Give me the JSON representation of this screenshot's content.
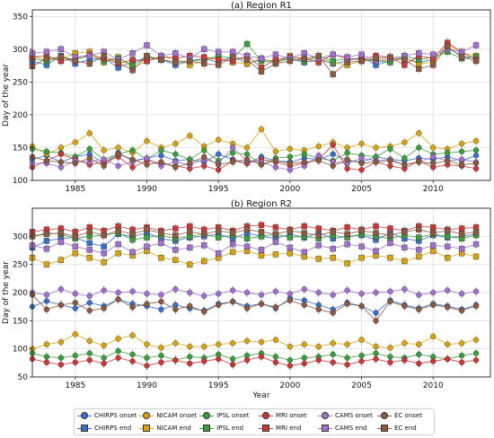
{
  "chart_data": [
    {
      "type": "line",
      "title": "(a) Region R1",
      "xlabel": "",
      "ylabel": "Day of the year",
      "xlim": [
        1982,
        2014
      ],
      "ylim": [
        100,
        360
      ],
      "yticks": [
        100,
        150,
        200,
        250,
        300,
        350
      ],
      "xticks": [
        1985,
        1990,
        1995,
        2000,
        2005,
        2010
      ],
      "grid": true,
      "x": [
        1982,
        1983,
        1984,
        1985,
        1986,
        1987,
        1988,
        1989,
        1990,
        1991,
        1992,
        1993,
        1994,
        1995,
        1996,
        1997,
        1998,
        1999,
        2000,
        2001,
        2002,
        2003,
        2004,
        2005,
        2006,
        2007,
        2008,
        2009,
        2010,
        2011,
        2012,
        2013
      ],
      "series": [
        {
          "name": "CHIRPS onset",
          "values": [
            132,
            138,
            128,
            136,
            140,
            126,
            142,
            130,
            134,
            138,
            130,
            132,
            128,
            140,
            132,
            126,
            136,
            130,
            128,
            134,
            132,
            140,
            130,
            128,
            136,
            132,
            130,
            134,
            132,
            136,
            130,
            138
          ]
        },
        {
          "name": "CHIRPS end",
          "values": [
            282,
            276,
            290,
            278,
            284,
            286,
            272,
            280,
            288,
            284,
            276,
            282,
            286,
            280,
            290,
            278,
            284,
            282,
            286,
            280,
            284,
            278,
            282,
            288,
            276,
            282,
            286,
            280,
            284,
            302,
            290,
            286
          ]
        },
        {
          "name": "NICAM onset",
          "values": [
            152,
            140,
            150,
            158,
            172,
            146,
            150,
            142,
            160,
            150,
            156,
            168,
            152,
            162,
            156,
            150,
            178,
            144,
            148,
            146,
            152,
            158,
            150,
            156,
            150,
            152,
            158,
            172,
            150,
            148,
            156,
            160
          ]
        },
        {
          "name": "NICAM end",
          "values": [
            290,
            284,
            286,
            294,
            296,
            280,
            288,
            272,
            282,
            290,
            286,
            276,
            282,
            288,
            280,
            278,
            286,
            280,
            290,
            284,
            286,
            280,
            276,
            282,
            284,
            282,
            286,
            278,
            280,
            308,
            294,
            290
          ]
        },
        {
          "name": "IPSL onset",
          "values": [
            148,
            144,
            142,
            136,
            148,
            132,
            140,
            146,
            132,
            146,
            140,
            132,
            146,
            130,
            142,
            140,
            124,
            134,
            136,
            140,
            134,
            130,
            142,
            138,
            136,
            148,
            134,
            150,
            140,
            142,
            144,
            146
          ]
        },
        {
          "name": "IPSL end",
          "values": [
            286,
            282,
            288,
            284,
            290,
            282,
            286,
            276,
            288,
            284,
            280,
            282,
            284,
            290,
            286,
            308,
            282,
            280,
            286,
            282,
            290,
            282,
            286,
            284,
            282,
            280,
            290,
            284,
            288,
            296,
            286,
            288
          ]
        },
        {
          "name": "MRI onset",
          "values": [
            120,
            130,
            140,
            132,
            124,
            128,
            136,
            120,
            130,
            126,
            122,
            118,
            122,
            116,
            130,
            126,
            132,
            128,
            122,
            126,
            132,
            154,
            118,
            116,
            128,
            122,
            118,
            130,
            120,
            124,
            122,
            118
          ]
        },
        {
          "name": "MRI end",
          "values": [
            288,
            290,
            282,
            286,
            292,
            286,
            278,
            284,
            282,
            288,
            286,
            290,
            288,
            284,
            282,
            290,
            272,
            284,
            288,
            286,
            280,
            292,
            286,
            284,
            290,
            288,
            276,
            290,
            286,
            310,
            296,
            284
          ]
        },
        {
          "name": "CAMS onset",
          "values": [
            126,
            126,
            120,
            130,
            128,
            132,
            122,
            128,
            134,
            122,
            128,
            124,
            132,
            126,
            150,
            130,
            128,
            120,
            116,
            122,
            138,
            128,
            126,
            134,
            130,
            132,
            124,
            128,
            136,
            130,
            132,
            128
          ]
        },
        {
          "name": "CAMS end",
          "values": [
            294,
            296,
            300,
            288,
            290,
            296,
            284,
            294,
            306,
            290,
            294,
            286,
            300,
            296,
            296,
            290,
            286,
            292,
            286,
            294,
            286,
            292,
            288,
            292,
            282,
            286,
            290,
            294,
            292,
            300,
            296,
            306
          ]
        },
        {
          "name": "EC onset",
          "values": [
            136,
            130,
            128,
            126,
            134,
            122,
            140,
            132,
            124,
            128,
            120,
            126,
            136,
            124,
            128,
            132,
            124,
            130,
            126,
            128,
            130,
            122,
            132,
            126,
            128,
            130,
            124,
            128,
            126,
            130,
            124,
            126
          ]
        },
        {
          "name": "EC end",
          "values": [
            274,
            286,
            288,
            282,
            278,
            290,
            280,
            268,
            290,
            284,
            280,
            282,
            278,
            276,
            288,
            284,
            266,
            278,
            282,
            286,
            290,
            262,
            280,
            282,
            286,
            288,
            284,
            270,
            276,
            304,
            288,
            282
          ]
        }
      ]
    },
    {
      "type": "line",
      "title": "(b) Region R2",
      "xlabel": "Year",
      "ylabel": "Day of the year",
      "xlim": [
        1982,
        2014
      ],
      "ylim": [
        50,
        350
      ],
      "yticks": [
        50,
        100,
        150,
        200,
        250,
        300
      ],
      "xticks": [
        1985,
        1990,
        1995,
        2000,
        2005,
        2010
      ],
      "grid": true,
      "x": [
        1982,
        1983,
        1984,
        1985,
        1986,
        1987,
        1988,
        1989,
        1990,
        1991,
        1992,
        1993,
        1994,
        1995,
        1996,
        1997,
        1998,
        1999,
        2000,
        2001,
        2002,
        2003,
        2004,
        2005,
        2006,
        2007,
        2008,
        2009,
        2010,
        2011,
        2012,
        2013
      ],
      "series": [
        {
          "name": "CHIRPS onset",
          "values": [
            175,
            185,
            178,
            172,
            182,
            176,
            188,
            180,
            176,
            170,
            178,
            172,
            168,
            180,
            184,
            176,
            180,
            172,
            190,
            186,
            178,
            170,
            182,
            176,
            164,
            186,
            178,
            172,
            180,
            176,
            170,
            178
          ]
        },
        {
          "name": "CHIRPS end",
          "values": [
            280,
            292,
            296,
            298,
            288,
            282,
            304,
            300,
            306,
            296,
            292,
            298,
            300,
            304,
            296,
            306,
            300,
            296,
            304,
            298,
            306,
            296,
            300,
            302,
            294,
            306,
            296,
            292,
            302,
            298,
            300,
            304
          ]
        },
        {
          "name": "NICAM onset",
          "values": [
            100,
            108,
            112,
            126,
            114,
            106,
            118,
            124,
            108,
            102,
            110,
            104,
            104,
            108,
            110,
            114,
            112,
            116,
            104,
            108,
            104,
            110,
            108,
            116,
            104,
            102,
            110,
            108,
            122,
            108,
            110,
            116
          ]
        },
        {
          "name": "NICAM end",
          "values": [
            262,
            250,
            258,
            270,
            262,
            254,
            270,
            266,
            274,
            262,
            258,
            250,
            256,
            262,
            272,
            274,
            266,
            268,
            270,
            264,
            260,
            262,
            252,
            262,
            266,
            262,
            256,
            264,
            274,
            262,
            270,
            264
          ]
        },
        {
          "name": "IPSL onset",
          "values": [
            92,
            86,
            84,
            88,
            92,
            84,
            96,
            90,
            84,
            88,
            80,
            86,
            84,
            90,
            82,
            88,
            92,
            86,
            80,
            84,
            86,
            90,
            84,
            88,
            92,
            86,
            84,
            90,
            86,
            82,
            88,
            92
          ]
        },
        {
          "name": "IPSL end",
          "values": [
            300,
            306,
            304,
            296,
            300,
            302,
            306,
            294,
            298,
            302,
            296,
            300,
            304,
            298,
            302,
            296,
            300,
            304,
            298,
            300,
            296,
            302,
            298,
            304,
            300,
            296,
            302,
            298,
            304,
            300,
            296,
            302
          ]
        },
        {
          "name": "MRI onset",
          "values": [
            82,
            76,
            72,
            76,
            80,
            74,
            84,
            78,
            70,
            76,
            80,
            74,
            78,
            82,
            72,
            80,
            86,
            76,
            70,
            74,
            80,
            76,
            72,
            78,
            82,
            76,
            80,
            74,
            78,
            82,
            76,
            80
          ]
        },
        {
          "name": "MRI end",
          "values": [
            308,
            312,
            314,
            308,
            316,
            310,
            318,
            312,
            316,
            310,
            314,
            318,
            312,
            316,
            310,
            318,
            320,
            316,
            312,
            318,
            314,
            310,
            316,
            312,
            318,
            314,
            310,
            318,
            316,
            312,
            314,
            316
          ]
        },
        {
          "name": "CAMS onset",
          "values": [
            200,
            196,
            206,
            198,
            194,
            204,
            200,
            202,
            198,
            196,
            206,
            200,
            194,
            198,
            204,
            200,
            196,
            202,
            198,
            206,
            200,
            196,
            204,
            198,
            200,
            202,
            206,
            196,
            200,
            204,
            198,
            202
          ]
        },
        {
          "name": "CAMS end",
          "values": [
            284,
            278,
            290,
            282,
            276,
            270,
            286,
            272,
            282,
            288,
            276,
            280,
            284,
            270,
            286,
            282,
            276,
            290,
            280,
            272,
            284,
            278,
            286,
            282,
            274,
            288,
            280,
            276,
            284,
            282,
            278,
            286
          ]
        },
        {
          "name": "EC onset",
          "values": [
            196,
            170,
            178,
            182,
            168,
            172,
            188,
            174,
            180,
            184,
            170,
            176,
            166,
            178,
            184,
            172,
            180,
            174,
            186,
            178,
            170,
            164,
            180,
            176,
            150,
            184,
            176,
            170,
            178,
            174,
            168,
            176
          ]
        },
        {
          "name": "EC end",
          "values": [
            300,
            304,
            306,
            300,
            308,
            302,
            310,
            304,
            312,
            306,
            302,
            308,
            304,
            310,
            306,
            312,
            308,
            304,
            310,
            306,
            302,
            308,
            304,
            310,
            306,
            302,
            308,
            312,
            306,
            310,
            304,
            308
          ]
        }
      ]
    }
  ],
  "legend": {
    "items": [
      {
        "label": "CHIRPS onset",
        "color": "#3a6fc4",
        "marker": "circle"
      },
      {
        "label": "NICAM onset",
        "color": "#d4a418",
        "marker": "circle"
      },
      {
        "label": "IPSL onset",
        "color": "#3e9b40",
        "marker": "circle"
      },
      {
        "label": "MRI onset",
        "color": "#c43a3a",
        "marker": "circle"
      },
      {
        "label": "CAMS onset",
        "color": "#9f72c8",
        "marker": "circle"
      },
      {
        "label": "EC onset",
        "color": "#8a5a44",
        "marker": "circle"
      },
      {
        "label": "CHIRPS end",
        "color": "#3a6fc4",
        "marker": "square"
      },
      {
        "label": "NICAM end",
        "color": "#d4a418",
        "marker": "square"
      },
      {
        "label": "IPSL end",
        "color": "#3e9b40",
        "marker": "square"
      },
      {
        "label": "MRI end",
        "color": "#c43a3a",
        "marker": "square"
      },
      {
        "label": "CAMS end",
        "color": "#9f72c8",
        "marker": "square"
      },
      {
        "label": "EC end",
        "color": "#8a5a44",
        "marker": "square"
      }
    ]
  },
  "colors": {
    "CHIRPS": "#3a6fc4",
    "NICAM": "#d4a418",
    "IPSL": "#3e9b40",
    "MRI": "#c43a3a",
    "CAMS": "#9f72c8",
    "EC": "#8a5a44"
  }
}
